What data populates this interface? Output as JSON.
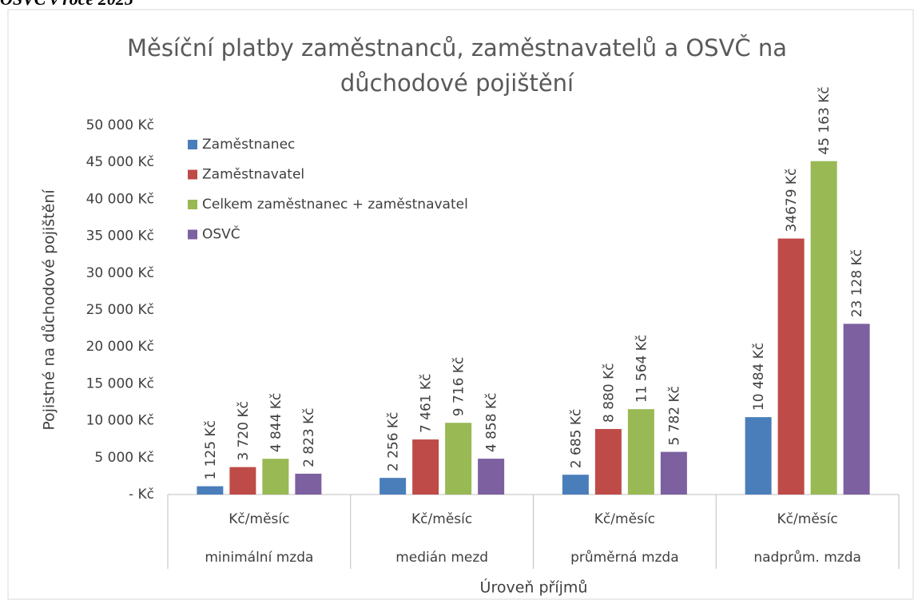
{
  "chart_data": {
    "type": "bar",
    "caption": "OSVČ v roce 2025",
    "title": "Měsíční platby zaměstnanců, zaměstnavatelů a OSVČ na důchodové pojištění",
    "ylabel": "Pojistné na důchodové pojištění",
    "xlabel": "Úroveň příjmů",
    "categories": [
      "minimální mzda",
      "medián mezd",
      "průměrná mzda",
      "nadprům. mzda"
    ],
    "subcategories": [
      "Kč/měsíc",
      "Kč/měsíc",
      "Kč/měsíc",
      "Kč/měsíc"
    ],
    "series": [
      {
        "name": "Zaměstnanec",
        "color": "#4a7ebb",
        "values": [
          1125,
          2256,
          2685,
          10484
        ],
        "value_labels": [
          "1 125 Kč",
          "2 256 Kč",
          "2 685 Kč",
          "10 484 Kč"
        ]
      },
      {
        "name": "Zaměstnavatel",
        "color": "#be4b48",
        "values": [
          3720,
          7461,
          8880,
          34679
        ],
        "value_labels": [
          "3 720 Kč",
          "7 461 Kč",
          "8 880 Kč",
          "34679 Kč"
        ]
      },
      {
        "name": "Celkem zaměstnanec + zaměstnavatel",
        "color": "#98b954",
        "values": [
          4844,
          9716,
          11564,
          45163
        ],
        "value_labels": [
          "4 844 Kč",
          "9 716 Kč",
          "11 564 Kč",
          "45 163 Kč"
        ]
      },
      {
        "name": "OSVČ",
        "color": "#7d60a0",
        "values": [
          2823,
          4858,
          5782,
          23128
        ],
        "value_labels": [
          "2 823 Kč",
          "4 858 Kč",
          "5 782 Kč",
          "23 128 Kč"
        ]
      }
    ],
    "ylim": [
      0,
      50000
    ],
    "yticks": [
      {
        "value": 0,
        "label": "-  Kč"
      },
      {
        "value": 5000,
        "label": "5 000 Kč"
      },
      {
        "value": 10000,
        "label": "10 000 Kč"
      },
      {
        "value": 15000,
        "label": "15 000 Kč"
      },
      {
        "value": 20000,
        "label": "20 000 Kč"
      },
      {
        "value": 25000,
        "label": "25 000 Kč"
      },
      {
        "value": 30000,
        "label": "30 000 Kč"
      },
      {
        "value": 35000,
        "label": "35 000 Kč"
      },
      {
        "value": 40000,
        "label": "40 000 Kč"
      },
      {
        "value": 45000,
        "label": "45 000 Kč"
      },
      {
        "value": 50000,
        "label": "50 000 Kč"
      }
    ],
    "grid": false,
    "legend": "upper left"
  }
}
